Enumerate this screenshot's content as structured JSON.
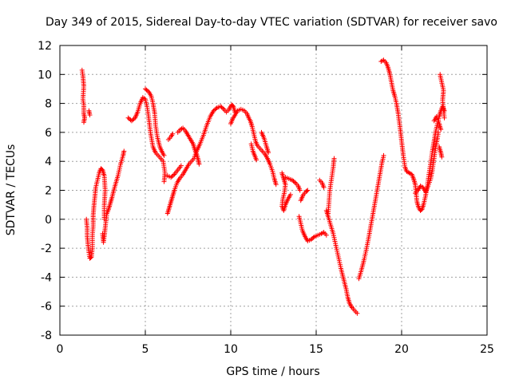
{
  "chart_data": {
    "type": "scatter",
    "title": "Day 349 of 2015, Sidereal Day-to-day VTEC variation (SDTVAR) for receiver savo",
    "xlabel": "GPS time / hours",
    "ylabel": "SDTVAR / TECUs",
    "xlim": [
      0,
      25
    ],
    "ylim": [
      -8,
      12
    ],
    "xticks": [
      0,
      5,
      10,
      15,
      20,
      25
    ],
    "yticks": [
      -8,
      -6,
      -4,
      -2,
      0,
      2,
      4,
      6,
      8,
      10,
      12
    ],
    "grid": true,
    "marker": "+",
    "series": [
      {
        "name": "SDTVAR",
        "color": "#ff0000",
        "segments": [
          [
            [
              1.3,
              10.3
            ],
            [
              1.35,
              9.9
            ],
            [
              1.4,
              9.2
            ],
            [
              1.35,
              8.3
            ],
            [
              1.4,
              7.9
            ],
            [
              1.4,
              7.3
            ],
            [
              1.45,
              7.0
            ],
            [
              1.4,
              6.7
            ]
          ],
          [
            [
              1.7,
              7.5
            ],
            [
              1.75,
              7.2
            ]
          ],
          [
            [
              1.55,
              0.0
            ],
            [
              1.6,
              -0.6
            ],
            [
              1.6,
              -1.2
            ],
            [
              1.65,
              -1.8
            ],
            [
              1.7,
              -2.3
            ],
            [
              1.75,
              -2.7
            ],
            [
              1.85,
              -2.6
            ],
            [
              1.9,
              -2.0
            ],
            [
              1.9,
              -1.2
            ],
            [
              1.95,
              -0.4
            ],
            [
              1.95,
              0.3
            ],
            [
              2.0,
              1.0
            ],
            [
              2.05,
              1.6
            ],
            [
              2.1,
              2.2
            ],
            [
              2.2,
              2.7
            ],
            [
              2.3,
              3.2
            ],
            [
              2.4,
              3.5
            ],
            [
              2.5,
              3.4
            ],
            [
              2.6,
              3.0
            ],
            [
              2.65,
              2.0
            ],
            [
              2.6,
              1.0
            ],
            [
              2.6,
              0.0
            ]
          ],
          [
            [
              2.5,
              -1.0
            ],
            [
              2.55,
              -1.6
            ],
            [
              2.6,
              -1.2
            ],
            [
              2.65,
              -0.6
            ],
            [
              2.7,
              -0.1
            ],
            [
              2.75,
              0.4
            ],
            [
              2.85,
              0.7
            ],
            [
              2.95,
              1.1
            ],
            [
              3.05,
              1.5
            ],
            [
              3.2,
              2.2
            ],
            [
              3.4,
              3.0
            ],
            [
              3.55,
              3.8
            ],
            [
              3.7,
              4.4
            ],
            [
              3.75,
              4.7
            ]
          ],
          [
            [
              4.0,
              7.0
            ],
            [
              4.2,
              6.8
            ],
            [
              4.4,
              7.0
            ],
            [
              4.55,
              7.4
            ],
            [
              4.7,
              8.0
            ],
            [
              4.85,
              8.4
            ],
            [
              5.0,
              8.3
            ],
            [
              5.1,
              7.8
            ],
            [
              5.2,
              7.0
            ],
            [
              5.3,
              6.0
            ],
            [
              5.45,
              5.0
            ],
            [
              5.6,
              4.6
            ],
            [
              5.75,
              4.4
            ],
            [
              5.9,
              4.2
            ],
            [
              6.05,
              4.0
            ],
            [
              6.15,
              3.2
            ],
            [
              6.1,
              2.6
            ]
          ],
          [
            [
              5.0,
              9.0
            ],
            [
              5.2,
              8.8
            ],
            [
              5.35,
              8.5
            ],
            [
              5.45,
              8.0
            ],
            [
              5.55,
              7.3
            ],
            [
              5.6,
              6.5
            ],
            [
              5.7,
              5.7
            ],
            [
              5.85,
              5.0
            ],
            [
              6.0,
              4.6
            ],
            [
              6.1,
              4.4
            ]
          ],
          [
            [
              6.3,
              0.4
            ],
            [
              6.4,
              0.8
            ],
            [
              6.5,
              1.2
            ],
            [
              6.6,
              1.6
            ],
            [
              6.7,
              2.0
            ],
            [
              6.85,
              2.5
            ],
            [
              7.0,
              2.8
            ],
            [
              7.2,
              3.1
            ],
            [
              7.4,
              3.5
            ],
            [
              7.55,
              3.8
            ],
            [
              7.7,
              4.0
            ],
            [
              7.85,
              4.2
            ],
            [
              8.0,
              4.7
            ],
            [
              8.2,
              5.2
            ],
            [
              8.4,
              5.8
            ],
            [
              8.6,
              6.5
            ],
            [
              8.8,
              7.1
            ],
            [
              9.0,
              7.5
            ],
            [
              9.2,
              7.7
            ],
            [
              9.4,
              7.8
            ],
            [
              9.6,
              7.6
            ],
            [
              9.75,
              7.4
            ],
            [
              9.9,
              7.6
            ],
            [
              10.05,
              7.9
            ],
            [
              10.15,
              7.8
            ],
            [
              10.25,
              7.4
            ]
          ],
          [
            [
              6.35,
              5.5
            ],
            [
              6.5,
              5.7
            ],
            [
              6.6,
              5.9
            ]
          ],
          [
            [
              6.9,
              6.0
            ],
            [
              7.05,
              6.2
            ],
            [
              7.2,
              6.3
            ],
            [
              7.35,
              6.1
            ],
            [
              7.5,
              5.8
            ],
            [
              7.65,
              5.5
            ],
            [
              7.8,
              5.2
            ],
            [
              7.9,
              4.8
            ],
            [
              8.0,
              4.5
            ],
            [
              8.1,
              4.1
            ],
            [
              8.15,
              3.8
            ]
          ],
          [
            [
              6.3,
              3.0
            ],
            [
              6.5,
              2.9
            ],
            [
              6.7,
              3.1
            ],
            [
              6.9,
              3.4
            ],
            [
              7.1,
              3.7
            ]
          ],
          [
            [
              10.0,
              6.6
            ],
            [
              10.1,
              6.9
            ],
            [
              10.25,
              7.2
            ],
            [
              10.4,
              7.5
            ],
            [
              10.6,
              7.6
            ],
            [
              10.8,
              7.5
            ],
            [
              10.95,
              7.3
            ],
            [
              11.05,
              7.0
            ],
            [
              11.15,
              6.8
            ],
            [
              11.25,
              6.4
            ],
            [
              11.35,
              5.9
            ],
            [
              11.45,
              5.4
            ],
            [
              11.55,
              5.1
            ],
            [
              11.7,
              4.9
            ],
            [
              11.85,
              4.7
            ],
            [
              12.0,
              4.5
            ],
            [
              12.15,
              4.2
            ],
            [
              12.3,
              3.8
            ],
            [
              12.45,
              3.3
            ],
            [
              12.55,
              2.8
            ],
            [
              12.65,
              2.4
            ]
          ],
          [
            [
              11.2,
              5.2
            ],
            [
              11.3,
              4.7
            ],
            [
              11.4,
              4.4
            ],
            [
              11.5,
              4.1
            ]
          ],
          [
            [
              11.8,
              6.0
            ],
            [
              11.95,
              5.6
            ],
            [
              12.1,
              5.0
            ],
            [
              12.2,
              4.6
            ]
          ],
          [
            [
              13.0,
              3.2
            ],
            [
              13.1,
              2.8
            ],
            [
              13.2,
              2.4
            ],
            [
              13.15,
              1.9
            ],
            [
              13.05,
              1.4
            ],
            [
              13.0,
              0.9
            ],
            [
              13.1,
              0.6
            ],
            [
              13.2,
              1.0
            ],
            [
              13.35,
              1.4
            ],
            [
              13.5,
              1.7
            ]
          ],
          [
            [
              13.2,
              2.9
            ],
            [
              13.4,
              2.8
            ],
            [
              13.6,
              2.7
            ],
            [
              13.8,
              2.5
            ],
            [
              13.95,
              2.3
            ],
            [
              14.05,
              2.0
            ]
          ],
          [
            [
              14.0,
              0.2
            ],
            [
              14.1,
              -0.3
            ],
            [
              14.2,
              -0.8
            ],
            [
              14.35,
              -1.2
            ],
            [
              14.5,
              -1.5
            ],
            [
              14.7,
              -1.4
            ],
            [
              14.9,
              -1.2
            ],
            [
              15.1,
              -1.1
            ],
            [
              15.3,
              -1.0
            ],
            [
              15.45,
              -0.9
            ],
            [
              15.6,
              -1.1
            ]
          ],
          [
            [
              14.1,
              1.3
            ],
            [
              14.25,
              1.7
            ],
            [
              14.4,
              1.9
            ],
            [
              14.5,
              2.0
            ]
          ],
          [
            [
              15.2,
              2.7
            ],
            [
              15.35,
              2.5
            ],
            [
              15.45,
              2.2
            ]
          ],
          [
            [
              15.7,
              0.4
            ],
            [
              15.75,
              1.2
            ],
            [
              15.8,
              2.0
            ],
            [
              15.9,
              2.8
            ],
            [
              16.0,
              3.6
            ],
            [
              16.05,
              4.2
            ]
          ],
          [
            [
              15.6,
              0.6
            ],
            [
              15.7,
              0.2
            ],
            [
              15.85,
              -0.4
            ],
            [
              16.0,
              -1.0
            ],
            [
              16.15,
              -1.8
            ],
            [
              16.3,
              -2.6
            ],
            [
              16.45,
              -3.4
            ],
            [
              16.6,
              -4.1
            ],
            [
              16.75,
              -4.8
            ],
            [
              16.85,
              -5.4
            ],
            [
              16.95,
              -5.8
            ],
            [
              17.1,
              -6.1
            ],
            [
              17.25,
              -6.3
            ],
            [
              17.4,
              -6.5
            ]
          ],
          [
            [
              17.5,
              -4.1
            ],
            [
              17.65,
              -3.5
            ],
            [
              17.8,
              -2.8
            ],
            [
              17.95,
              -2.0
            ],
            [
              18.1,
              -1.1
            ],
            [
              18.25,
              -0.1
            ],
            [
              18.4,
              0.9
            ],
            [
              18.55,
              1.9
            ],
            [
              18.7,
              2.9
            ],
            [
              18.85,
              3.9
            ],
            [
              18.95,
              4.4
            ]
          ],
          [
            [
              18.8,
              10.9
            ],
            [
              18.95,
              11.0
            ],
            [
              19.1,
              10.8
            ],
            [
              19.2,
              10.5
            ],
            [
              19.3,
              10.1
            ],
            [
              19.4,
              9.5
            ],
            [
              19.5,
              8.9
            ],
            [
              19.6,
              8.5
            ],
            [
              19.7,
              8.0
            ],
            [
              19.8,
              7.3
            ],
            [
              19.9,
              6.4
            ],
            [
              20.0,
              5.4
            ],
            [
              20.1,
              4.4
            ],
            [
              20.2,
              3.6
            ],
            [
              20.3,
              3.3
            ],
            [
              20.45,
              3.2
            ],
            [
              20.6,
              3.1
            ],
            [
              20.7,
              2.8
            ],
            [
              20.8,
              2.4
            ],
            [
              20.85,
              1.8
            ],
            [
              20.9,
              1.2
            ],
            [
              21.0,
              0.8
            ],
            [
              21.1,
              0.6
            ],
            [
              21.2,
              0.7
            ],
            [
              21.3,
              1.1
            ],
            [
              21.4,
              1.6
            ],
            [
              21.5,
              2.3
            ],
            [
              21.6,
              3.1
            ],
            [
              21.7,
              3.9
            ],
            [
              21.8,
              4.7
            ],
            [
              21.9,
              5.4
            ],
            [
              22.0,
              6.1
            ],
            [
              22.1,
              6.6
            ],
            [
              22.2,
              7.1
            ],
            [
              22.3,
              7.5
            ],
            [
              22.4,
              7.8
            ],
            [
              22.5,
              7.5
            ]
          ],
          [
            [
              20.8,
              1.8
            ],
            [
              20.95,
              2.0
            ],
            [
              21.1,
              2.3
            ],
            [
              21.25,
              2.2
            ],
            [
              21.4,
              1.9
            ],
            [
              21.55,
              2.3
            ],
            [
              21.7,
              2.8
            ],
            [
              21.8,
              3.4
            ],
            [
              21.9,
              4.2
            ],
            [
              22.0,
              5.0
            ],
            [
              22.1,
              5.6
            ],
            [
              22.15,
              6.0
            ]
          ],
          [
            [
              21.9,
              6.8
            ],
            [
              22.05,
              7.1
            ],
            [
              22.2,
              6.6
            ],
            [
              22.3,
              6.2
            ]
          ],
          [
            [
              22.25,
              10.0
            ],
            [
              22.45,
              8.9
            ],
            [
              22.4,
              8.2
            ],
            [
              22.5,
              7.0
            ]
          ],
          [
            [
              22.2,
              5.0
            ],
            [
              22.3,
              4.6
            ],
            [
              22.35,
              4.3
            ]
          ]
        ]
      }
    ]
  }
}
